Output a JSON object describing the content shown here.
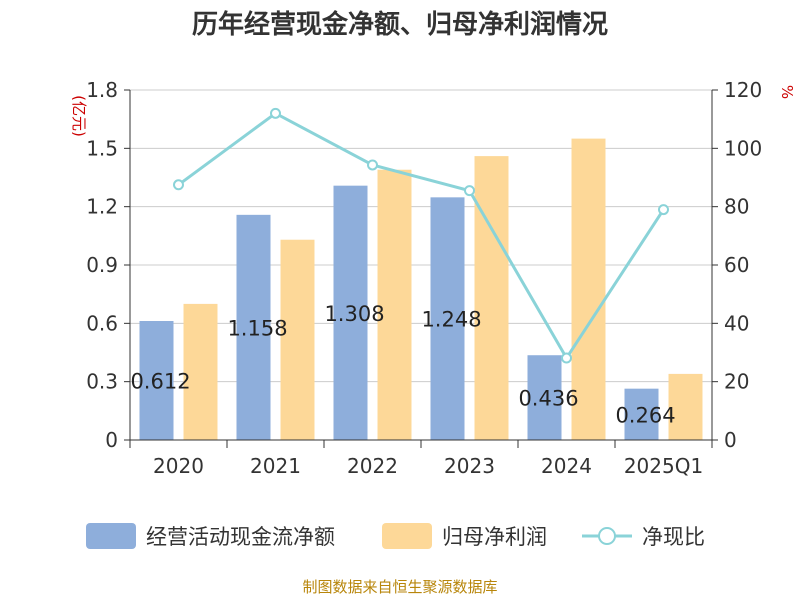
{
  "chart_data": {
    "type": "bar",
    "title": "历年经营现金净额、归母净利润情况",
    "categories": [
      "2020",
      "2021",
      "2022",
      "2023",
      "2024",
      "2025Q1"
    ],
    "y_left": {
      "unit": "(亿元)",
      "range": [
        0,
        1.8
      ],
      "ticks": [
        "0",
        "0.3",
        "0.6",
        "0.9",
        "1.2",
        "1.5",
        "1.8"
      ]
    },
    "y_right": {
      "unit": "%",
      "range": [
        0,
        120
      ],
      "ticks": [
        "0",
        "20",
        "40",
        "60",
        "80",
        "100",
        "120"
      ]
    },
    "grid": true,
    "legend_position": "bottom",
    "series": [
      {
        "name": "经营活动现金流净额",
        "type": "bar",
        "axis": "left",
        "color": "#8eaedb",
        "values": [
          0.612,
          1.158,
          1.308,
          1.248,
          0.436,
          0.264
        ],
        "labels": [
          "0.612",
          "1.158",
          "1.308",
          "1.248",
          "0.436",
          "0.264"
        ]
      },
      {
        "name": "归母净利润",
        "type": "bar",
        "axis": "left",
        "color": "#fdd898",
        "values": [
          0.7,
          1.03,
          1.39,
          1.46,
          1.55,
          0.34
        ]
      },
      {
        "name": "净现比",
        "type": "line",
        "axis": "right",
        "color": "#8ad3d8",
        "values": [
          87.5,
          112.0,
          94.3,
          85.5,
          28.1,
          79.0
        ]
      }
    ],
    "source": "制图数据来自恒生聚源数据库"
  }
}
